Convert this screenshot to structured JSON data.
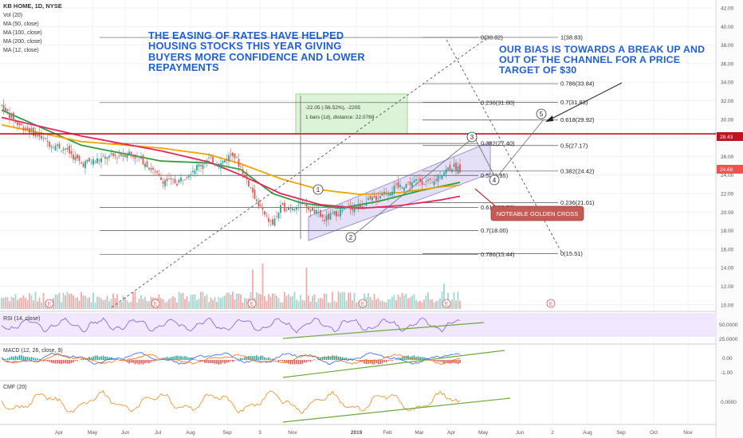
{
  "header": {
    "symbol_line": "KB HOME, 1D, NYSE",
    "indicators": [
      "Vol (20)",
      "MA (50, close)",
      "MA (100, close)",
      "MA (200, close)",
      "MA (12, close)"
    ]
  },
  "annotations": {
    "left_box": "THE  EASING OF RATES HAVE HELPED HOUSING STOCKS  THIS YEAR GIVING BUYERS MORE CONFIDENCE AND LOWER REPAYMENTS",
    "right_box": "OUR BIAS IS TOWARDS A BREAK UP AND OUT OF THE CHANNEL FOR A PRICE TARGET OF $30",
    "golden_cross_label": "NOTEABLE GOLDEN CROSS",
    "measure_line1": "-22.05 (-56.52%), -2205",
    "measure_line2": "1 bars (1d), distance: 22.0769",
    "wave_labels": [
      "1",
      "2",
      "3",
      "4",
      "5"
    ],
    "earnings_marker": "E"
  },
  "colors": {
    "candle_up": "#26a69a",
    "candle_down": "#ef5350",
    "ma50": "#2e9e3a",
    "ma100": "#f0a500",
    "ma200": "#e8245c",
    "ma12": "#e8245c",
    "resistance": "#c1121f",
    "callout_text": "#1f5fd6",
    "channel_fill": "#c9c2f0",
    "rsi_band": "#efe6ff",
    "trendline": "#6aaa3a",
    "cmf": "#f08a18",
    "macd_line": "#2962ff",
    "signal_line": "#ff6d00"
  },
  "price_badges": {
    "resistance": "28.43",
    "last": "24.68"
  },
  "chart_data": {
    "type": "line",
    "title": "KB HOME, 1D, NYSE",
    "xlabel": "",
    "ylabel": "",
    "price_ylim": [
      8,
      42
    ],
    "y_ticks": [
      10,
      12,
      14,
      16,
      18,
      20,
      22,
      24,
      26,
      28,
      30,
      32,
      34,
      36,
      38,
      40,
      42
    ],
    "x_ticks": [
      "Apr",
      "May",
      "Jun",
      "Jul",
      "Aug",
      "Sep",
      "3",
      "Nov",
      "2019",
      "Feb",
      "Mar",
      "Apr",
      "May",
      "Jun",
      "2",
      "Aug",
      "Sep",
      "Oct",
      "Nov"
    ],
    "price_anchors": [
      [
        0,
        31.5
      ],
      [
        8,
        29.5
      ],
      [
        16,
        28.6
      ],
      [
        24,
        27.4
      ],
      [
        32,
        26.8
      ],
      [
        40,
        25.2
      ],
      [
        48,
        25.6
      ],
      [
        56,
        26.0
      ],
      [
        64,
        26.4
      ],
      [
        72,
        25.4
      ],
      [
        80,
        23.5
      ],
      [
        88,
        23.2
      ],
      [
        96,
        24.6
      ],
      [
        104,
        25.7
      ],
      [
        110,
        25.2
      ],
      [
        116,
        26.4
      ],
      [
        120,
        24.8
      ],
      [
        126,
        22.2
      ],
      [
        132,
        19.5
      ],
      [
        136,
        18.7
      ],
      [
        140,
        20.4
      ],
      [
        146,
        20.6
      ],
      [
        150,
        20.9
      ],
      [
        156,
        20.2
      ],
      [
        162,
        19.2
      ],
      [
        168,
        19.9
      ],
      [
        174,
        20.4
      ],
      [
        180,
        20.7
      ],
      [
        186,
        21.3
      ],
      [
        192,
        22.1
      ],
      [
        198,
        22.6
      ],
      [
        204,
        23.1
      ],
      [
        210,
        23.4
      ],
      [
        216,
        23.0
      ],
      [
        220,
        24.1
      ],
      [
        226,
        24.9
      ],
      [
        230,
        24.68
      ]
    ],
    "series": [
      {
        "name": "MA (50, close)",
        "values": [
          [
            0,
            31
          ],
          [
            40,
            27.2
          ],
          [
            80,
            25.5
          ],
          [
            104,
            25.3
          ],
          [
            120,
            24.6
          ],
          [
            136,
            22.0
          ],
          [
            150,
            21.0
          ],
          [
            170,
            20.4
          ],
          [
            190,
            21.2
          ],
          [
            210,
            22.3
          ],
          [
            230,
            23.2
          ]
        ]
      },
      {
        "name": "MA (100, close)",
        "values": [
          [
            0,
            29.4
          ],
          [
            40,
            27.6
          ],
          [
            80,
            26.9
          ],
          [
            104,
            26.2
          ],
          [
            120,
            25.2
          ],
          [
            140,
            23.6
          ],
          [
            160,
            22.4
          ],
          [
            180,
            21.9
          ],
          [
            200,
            22.1
          ],
          [
            220,
            22.7
          ],
          [
            230,
            22.9
          ]
        ]
      },
      {
        "name": "MA (200, close)",
        "values": [
          [
            0,
            30.2
          ],
          [
            40,
            28.2
          ],
          [
            80,
            26.6
          ],
          [
            104,
            25.4
          ],
          [
            120,
            24.0
          ],
          [
            140,
            22.0
          ],
          [
            160,
            20.8
          ],
          [
            180,
            20.4
          ],
          [
            200,
            20.7
          ],
          [
            220,
            21.3
          ],
          [
            230,
            21.7
          ]
        ]
      }
    ],
    "resistance_level": 28.43,
    "fib_left": [
      {
        "label": "0.236(31.80)",
        "y": 31.8
      },
      {
        "label": "0.382(27.40)",
        "y": 27.4
      },
      {
        "label": "0.5(23.95)",
        "y": 23.95
      },
      {
        "label": "0.618(20.50)",
        "y": 20.5
      },
      {
        "label": "0.7(18.00)",
        "y": 18.0
      },
      {
        "label": "0.786(15.44)",
        "y": 15.44
      },
      {
        "label": "0(38.82)",
        "y": 38.82
      }
    ],
    "fib_right": [
      {
        "label": "1(38.83)",
        "y": 38.83
      },
      {
        "label": "0.786(33.84)",
        "y": 33.84
      },
      {
        "label": "0.7(31.83)",
        "y": 31.83
      },
      {
        "label": "0.618(29.92)",
        "y": 29.92
      },
      {
        "label": "0.5(27.17)",
        "y": 27.17
      },
      {
        "label": "0.382(24.42)",
        "y": 24.42
      },
      {
        "label": "0.236(21.01)",
        "y": 21.01
      },
      {
        "label": "0(15.51)",
        "y": 15.51
      }
    ],
    "rsi": {
      "label": "RSI (14, close)",
      "ticks": [
        "50.0000",
        "25.0000"
      ]
    },
    "macd": {
      "label": "MACD (12, 26, close, 9)",
      "ticks": [
        "0.00",
        "-1.00"
      ]
    },
    "cmf": {
      "label": "CMF (20)",
      "ticks": [
        "0.0000"
      ]
    }
  }
}
